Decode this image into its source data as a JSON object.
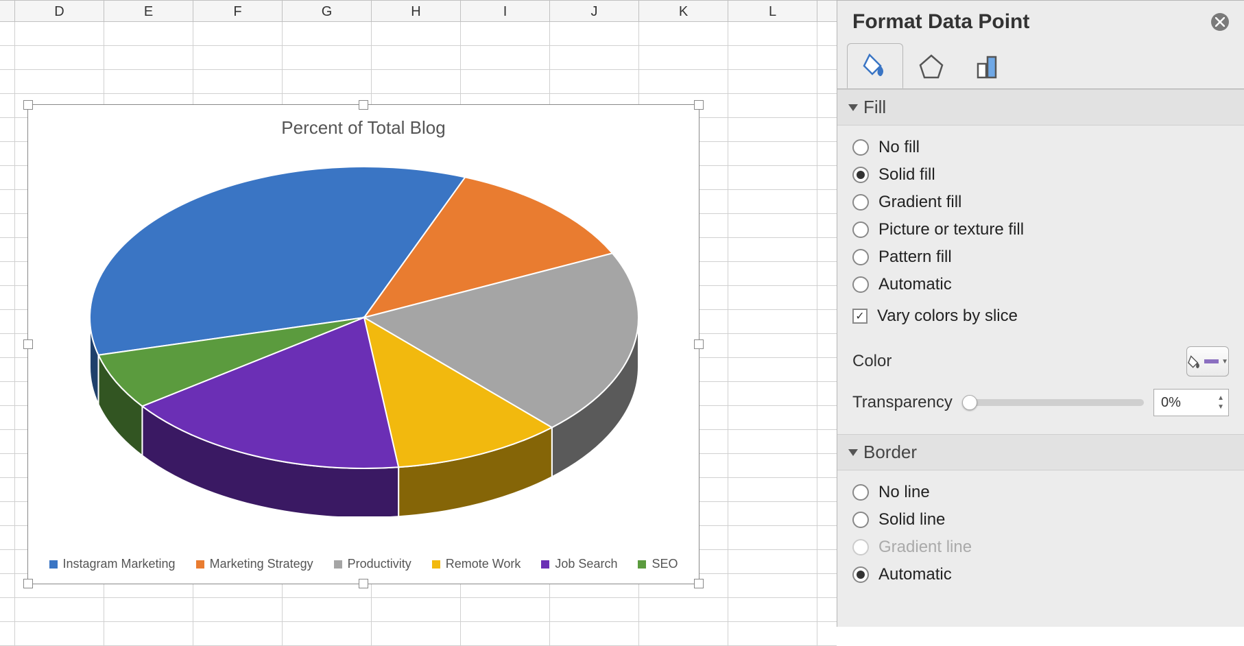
{
  "columns": [
    "D",
    "E",
    "F",
    "G",
    "H",
    "I",
    "J",
    "K",
    "L"
  ],
  "chart": {
    "type": "pie-3d",
    "title": "Percent of Total Blog",
    "title_fontsize": 26,
    "title_color": "#595959",
    "background_color": "#ffffff",
    "slices": [
      {
        "label": "Instagram Marketing",
        "value": 35,
        "color": "#3a75c4"
      },
      {
        "label": "Marketing Strategy",
        "value": 12,
        "color": "#e97c30"
      },
      {
        "label": "Productivity",
        "value": 20,
        "color": "#a5a5a5"
      },
      {
        "label": "Remote Work",
        "value": 10,
        "color": "#f2b90e"
      },
      {
        "label": "Job Search",
        "value": 17,
        "color": "#6b2fb5"
      },
      {
        "label": "SEO",
        "value": 6,
        "color": "#5b9b3e"
      }
    ],
    "legend_position": "bottom",
    "legend_fontsize": 18,
    "depth_ratio": 0.18,
    "tilt_scaleY": 0.55,
    "stroke": "#ffffff",
    "stroke_width": 2
  },
  "pane": {
    "title": "Format Data Point",
    "tabs": {
      "fill_line": {
        "active": true
      },
      "effects": {
        "active": false
      },
      "size_props": {
        "active": false
      }
    },
    "sections": {
      "fill": {
        "label": "Fill",
        "expanded": true,
        "options": {
          "no_fill": "No fill",
          "solid_fill": "Solid fill",
          "gradient_fill": "Gradient fill",
          "picture_fill": "Picture or texture fill",
          "pattern_fill": "Pattern fill",
          "automatic": "Automatic"
        },
        "selected": "solid_fill",
        "vary_colors_label": "Vary colors by slice",
        "vary_colors_checked": true,
        "color_label": "Color",
        "color_value": "#8b6fc0",
        "transparency_label": "Transparency",
        "transparency_value": "0%"
      },
      "border": {
        "label": "Border",
        "expanded": true,
        "options": {
          "no_line": "No line",
          "solid_line": "Solid line",
          "gradient_line": "Gradient line",
          "automatic": "Automatic"
        },
        "selected": "automatic",
        "gradient_disabled": true
      }
    }
  }
}
